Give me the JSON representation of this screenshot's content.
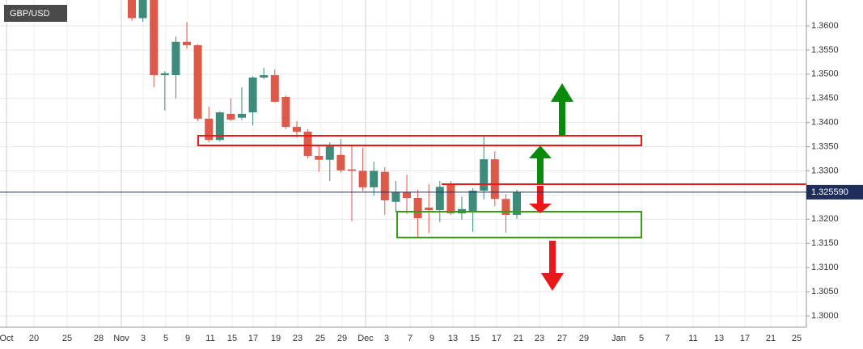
{
  "header": {
    "symbol": "GBP/USD"
  },
  "chart_data": {
    "type": "candlestick",
    "open": [
      1.366,
      1.3616,
      1.366,
      1.3498,
      1.3498,
      1.3567,
      1.356,
      1.3408,
      1.3364,
      1.3418,
      1.341,
      1.3421,
      1.3493,
      1.3498,
      1.3453,
      1.3391,
      1.3381,
      1.3331,
      1.3323,
      1.3333,
      1.3303,
      1.33,
      1.3266,
      1.3298,
      1.3236,
      1.3256,
      1.3244,
      1.3224,
      1.3219,
      1.3271,
      1.3212,
      1.3216,
      1.3259,
      1.3324,
      1.3242,
      1.3209
    ],
    "high": [
      1.367,
      1.367,
      1.367,
      1.3506,
      1.3578,
      1.3608,
      1.3562,
      1.3433,
      1.3423,
      1.345,
      1.3473,
      1.3496,
      1.3513,
      1.351,
      1.3456,
      1.3403,
      1.3386,
      1.3353,
      1.3359,
      1.3366,
      1.3351,
      1.3348,
      1.3319,
      1.3308,
      1.3279,
      1.3292,
      1.3261,
      1.3273,
      1.3279,
      1.3279,
      1.3247,
      1.3264,
      1.3371,
      1.3341,
      1.3252,
      1.3261
    ],
    "low": [
      1.361,
      1.3608,
      1.3473,
      1.3425,
      1.345,
      1.3553,
      1.3403,
      1.3359,
      1.3361,
      1.3403,
      1.3405,
      1.3394,
      1.349,
      1.3441,
      1.3386,
      1.3369,
      1.3326,
      1.3298,
      1.3279,
      1.3296,
      1.3196,
      1.3258,
      1.3249,
      1.3209,
      1.3214,
      1.3211,
      1.3164,
      1.3171,
      1.3194,
      1.3209,
      1.3199,
      1.3174,
      1.3241,
      1.3227,
      1.3172,
      1.3201
    ],
    "close": [
      1.3616,
      1.366,
      1.3498,
      1.3502,
      1.3567,
      1.356,
      1.3408,
      1.3364,
      1.3421,
      1.3406,
      1.3418,
      1.3493,
      1.3498,
      1.3443,
      1.3391,
      1.3381,
      1.3331,
      1.3323,
      1.3353,
      1.3301,
      1.33,
      1.3266,
      1.33,
      1.3239,
      1.3256,
      1.3244,
      1.3202,
      1.3219,
      1.3267,
      1.3212,
      1.3221,
      1.3259,
      1.3324,
      1.3242,
      1.3209,
      1.3256
    ],
    "up_color": "#3d8b7b",
    "down_color": "#dd5a4b",
    "ylim": [
      1.29766,
      1.36535
    ],
    "yticks": [
      {
        "value": 1.3,
        "label": "1.3000"
      },
      {
        "value": 1.305,
        "label": "1.3050"
      },
      {
        "value": 1.31,
        "label": "1.3100"
      },
      {
        "value": 1.315,
        "label": "1.3150"
      },
      {
        "value": 1.32,
        "label": "1.3200"
      },
      {
        "value": 1.325,
        "label": "1.3250"
      },
      {
        "value": 1.33,
        "label": "1.3300"
      },
      {
        "value": 1.335,
        "label": "1.3350"
      },
      {
        "value": 1.34,
        "label": "1.3400"
      },
      {
        "value": 1.345,
        "label": "1.3450"
      },
      {
        "value": 1.35,
        "label": "1.3500"
      },
      {
        "value": 1.355,
        "label": "1.3550"
      },
      {
        "value": 1.36,
        "label": "1.3600"
      }
    ],
    "x_labels": [
      "Oct",
      "20",
      "25",
      "28",
      "Nov",
      "3",
      "5",
      "9",
      "11",
      "15",
      "17",
      "19",
      "23",
      "25",
      "29",
      "Dec",
      "3",
      "7",
      "9",
      "13",
      "15",
      "17",
      "21",
      "23",
      "27",
      "29",
      "Jan",
      "5",
      "7",
      "11",
      "13",
      "17",
      "21",
      "25"
    ],
    "last_price": {
      "value": 1.32559,
      "label": "1.325590"
    },
    "grid": true
  }
}
